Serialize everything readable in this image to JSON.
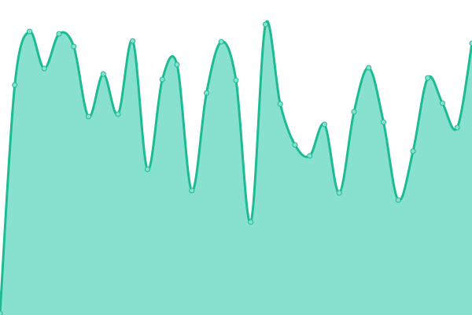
{
  "chart_data": {
    "type": "area",
    "categories": [
      null,
      null,
      null,
      null,
      null,
      null,
      null,
      null,
      null,
      null,
      null,
      null,
      null,
      null,
      null,
      null,
      null,
      null,
      null,
      null,
      null,
      null,
      null,
      null,
      null,
      null,
      null,
      null,
      null,
      null,
      null,
      null,
      null
    ],
    "values": [
      2,
      292,
      360,
      313,
      357,
      341,
      252,
      306,
      255,
      348,
      185,
      299,
      318,
      158,
      282,
      347,
      298,
      118,
      369,
      268,
      216,
      202,
      242,
      155,
      258,
      314,
      245,
      146,
      208,
      301,
      269,
      238,
      345
    ],
    "ylim": [
      0,
      400
    ],
    "color": "#1dbb94",
    "fill_color": "#88e0cf"
  }
}
